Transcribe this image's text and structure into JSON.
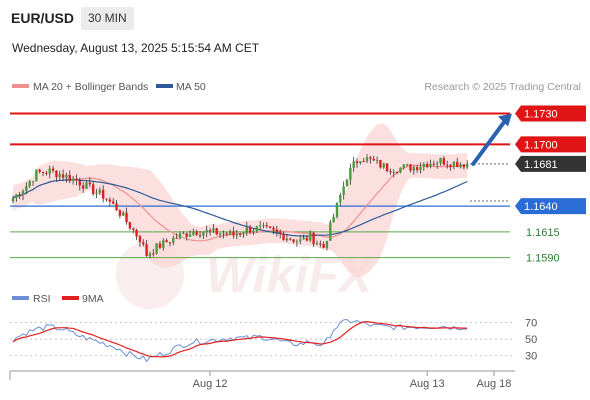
{
  "header": {
    "symbol": "EUR/USD",
    "timeframe": "30 MIN",
    "datetime": "Wednesday, August 13, 2025 5:15:54 AM CET"
  },
  "legend": {
    "ma20": "MA 20 + Bollinger Bands",
    "ma50": "MA 50",
    "credit": "Research © 2025 Trading Central",
    "rsi": "RSI",
    "rsi_ma": "9MA"
  },
  "colors": {
    "bull": "#4c9a3f",
    "bear": "#e02020",
    "ma20": "#f08f8f",
    "ma50": "#2d5b9a",
    "bands_fill": "#fbd5d5",
    "resistance": "#e01414",
    "current": "#333333",
    "pivot": "#2a6dd6",
    "support": "#5aa94a",
    "rsi": "#6b8ed6",
    "rsi_ma": "#e02020",
    "arrow": "#2a62b0"
  },
  "chart_data": [
    {
      "type": "candlestick",
      "symbol": "EUR/USD",
      "timeframe": "30 MIN",
      "ylim": [
        1.1578,
        1.1745
      ],
      "x_ticks": [
        "Aug 12",
        "Aug 13",
        "Aug 18"
      ],
      "levels": [
        {
          "value": 1.173,
          "label": "1.1730",
          "kind": "resistance"
        },
        {
          "value": 1.17,
          "label": "1.1700",
          "kind": "resistance"
        },
        {
          "value": 1.1681,
          "label": "1.1681",
          "kind": "current"
        },
        {
          "value": 1.164,
          "label": "1.1640",
          "kind": "pivot"
        },
        {
          "value": 1.1615,
          "label": "1.1615",
          "kind": "support"
        },
        {
          "value": 1.159,
          "label": "1.1590",
          "kind": "support"
        }
      ],
      "projection": {
        "from": 1.1681,
        "to": 1.173
      },
      "key_points": [
        [
          0,
          1.1648
        ],
        [
          4,
          1.166
        ],
        [
          7,
          1.1672
        ],
        [
          11,
          1.1674
        ],
        [
          15,
          1.167
        ],
        [
          19,
          1.1665
        ],
        [
          23,
          1.1657
        ],
        [
          27,
          1.165
        ],
        [
          31,
          1.1638
        ],
        [
          34,
          1.1625
        ],
        [
          38,
          1.1608
        ],
        [
          40,
          1.1593
        ],
        [
          43,
          1.16
        ],
        [
          47,
          1.1607
        ],
        [
          50,
          1.1611
        ],
        [
          54,
          1.1616
        ],
        [
          58,
          1.1615
        ],
        [
          62,
          1.1614
        ],
        [
          66,
          1.1612
        ],
        [
          70,
          1.1618
        ],
        [
          74,
          1.1618
        ],
        [
          78,
          1.1615
        ],
        [
          82,
          1.161
        ],
        [
          86,
          1.1606
        ],
        [
          89,
          1.161
        ],
        [
          93,
          1.16
        ],
        [
          96,
          1.163
        ],
        [
          98,
          1.165
        ],
        [
          100,
          1.1669
        ],
        [
          102,
          1.168
        ],
        [
          104,
          1.1688
        ],
        [
          108,
          1.1683
        ],
        [
          112,
          1.1677
        ],
        [
          116,
          1.1677
        ],
        [
          120,
          1.1678
        ],
        [
          124,
          1.1682
        ],
        [
          128,
          1.1684
        ],
        [
          132,
          1.1682
        ],
        [
          136,
          1.1681
        ]
      ]
    },
    {
      "type": "line",
      "title": "RSI",
      "series": [
        {
          "name": "RSI"
        },
        {
          "name": "9MA"
        }
      ],
      "ylim": [
        20,
        78
      ],
      "y_ticks": [
        70,
        50,
        30
      ],
      "key_points": [
        [
          0,
          50
        ],
        [
          4,
          58
        ],
        [
          7,
          62
        ],
        [
          11,
          65
        ],
        [
          15,
          62
        ],
        [
          19,
          55
        ],
        [
          23,
          50
        ],
        [
          27,
          45
        ],
        [
          31,
          40
        ],
        [
          34,
          33
        ],
        [
          38,
          28
        ],
        [
          40,
          25
        ],
        [
          43,
          30
        ],
        [
          47,
          36
        ],
        [
          50,
          42
        ],
        [
          54,
          47
        ],
        [
          58,
          48
        ],
        [
          62,
          50
        ],
        [
          66,
          52
        ],
        [
          70,
          51
        ],
        [
          74,
          53
        ],
        [
          78,
          50
        ],
        [
          82,
          45
        ],
        [
          86,
          44
        ],
        [
          89,
          47
        ],
        [
          93,
          42
        ],
        [
          96,
          62
        ],
        [
          98,
          68
        ],
        [
          100,
          72
        ],
        [
          102,
          72
        ],
        [
          104,
          70
        ],
        [
          108,
          66
        ],
        [
          112,
          65
        ],
        [
          116,
          64
        ],
        [
          120,
          65
        ],
        [
          124,
          65
        ],
        [
          128,
          66
        ],
        [
          132,
          64
        ],
        [
          136,
          65
        ]
      ]
    }
  ]
}
